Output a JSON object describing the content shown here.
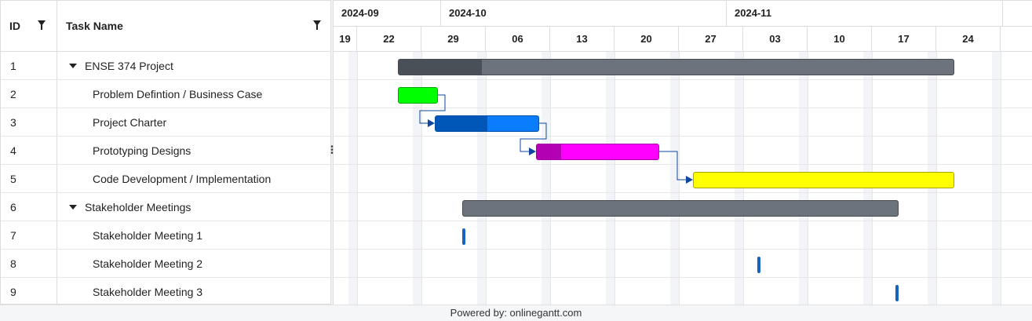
{
  "grid": {
    "col_id": "ID",
    "col_name": "Task Name"
  },
  "tasks": [
    {
      "id": "1",
      "name": "ENSE 374 Project",
      "group": true,
      "color": "#6c737c",
      "progress_color": "#4a5058",
      "progress": 0.15
    },
    {
      "id": "2",
      "name": "Problem Defintion / Business Case",
      "group": false,
      "color": "#00ff00",
      "progress_color": "#00ff00",
      "progress": 0
    },
    {
      "id": "3",
      "name": "Project Charter",
      "group": false,
      "color": "#0a7dff",
      "progress_color": "#0057b8",
      "progress": 0.5
    },
    {
      "id": "4",
      "name": "Prototyping Designs",
      "group": false,
      "color": "#ff00ff",
      "progress_color": "#b300b3",
      "progress": 0.2
    },
    {
      "id": "5",
      "name": "Code Development / Implementation",
      "group": false,
      "color": "#ffff00",
      "progress_color": "#ffff00",
      "progress": 0
    },
    {
      "id": "6",
      "name": "Stakeholder Meetings",
      "group": true,
      "color": "#6c737c",
      "progress_color": "#6c737c",
      "progress": 0
    },
    {
      "id": "7",
      "name": "Stakeholder Meeting 1",
      "group": false,
      "milestone": true,
      "color": "#1565c0"
    },
    {
      "id": "8",
      "name": "Stakeholder Meeting 2",
      "group": false,
      "milestone": true,
      "color": "#1565c0"
    },
    {
      "id": "9",
      "name": "Stakeholder Meeting 3",
      "group": false,
      "milestone": true,
      "color": "#1565c0"
    }
  ],
  "timeline": {
    "months": [
      "2024-09",
      "2024-10",
      "2024-11"
    ],
    "days": [
      "19",
      "22",
      "29",
      "06",
      "13",
      "20",
      "27",
      "03",
      "10",
      "17",
      "24"
    ]
  },
  "footer": {
    "text": "Powered by: onlinegantt.com"
  },
  "colors": {
    "dependency": "#0d47a1",
    "border": "#dddddd"
  }
}
